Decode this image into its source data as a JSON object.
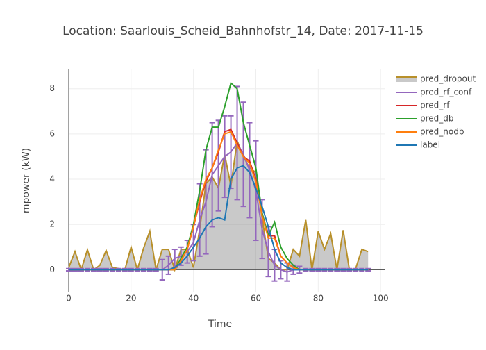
{
  "chart_data": {
    "type": "line",
    "title": "Location: Saarlouis_Scheid_Bahnhofstr_14, Date: 2017-11-15",
    "xlabel": "Time",
    "ylabel": "mpower (kW)",
    "xlim": [
      0,
      101.3
    ],
    "ylim": [
      -0.97,
      8.85
    ],
    "xticks": [
      0,
      20,
      40,
      60,
      80,
      100
    ],
    "yticks": [
      0,
      2,
      4,
      6,
      8
    ],
    "grid": true,
    "legend": "right",
    "x": [
      0,
      2,
      4,
      6,
      8,
      10,
      12,
      14,
      16,
      18,
      20,
      22,
      24,
      26,
      28,
      30,
      32,
      34,
      36,
      38,
      40,
      42,
      44,
      46,
      48,
      50,
      52,
      54,
      56,
      58,
      60,
      62,
      64,
      66,
      68,
      70,
      72,
      74,
      76,
      78,
      80,
      82,
      84,
      86,
      88,
      90,
      92,
      94,
      96
    ],
    "series": [
      {
        "name": "pred_dropout",
        "color": "#b8902a",
        "fill": "tozeroy",
        "fill_color": "rgba(120,120,120,0.4)",
        "values": [
          0.1,
          0.8,
          0.0,
          0.88,
          0.0,
          0.2,
          0.85,
          0.1,
          0.05,
          0.0,
          1.0,
          0.0,
          0.95,
          1.7,
          0.0,
          0.9,
          0.9,
          0.0,
          0.9,
          0.9,
          0.1,
          1.8,
          3.8,
          4.1,
          3.6,
          5.1,
          3.7,
          5.7,
          5.0,
          4.5,
          4.3,
          2.3,
          0.5,
          0.3,
          0.0,
          0.0,
          0.9,
          0.6,
          2.2,
          0.0,
          1.7,
          0.9,
          1.6,
          0.0,
          1.75,
          0.0,
          0.05,
          0.9,
          0.8
        ]
      },
      {
        "name": "pred_rf_conf",
        "color": "#9467bd",
        "values": [
          0,
          0,
          0,
          0,
          0,
          0,
          0,
          0,
          0,
          0,
          0,
          0,
          0,
          0,
          0,
          0.0,
          0.2,
          0.5,
          0.6,
          0.8,
          1.2,
          2.2,
          3.0,
          4.2,
          4.6,
          5.0,
          5.2,
          5.6,
          5.1,
          4.4,
          3.5,
          1.8,
          0.8,
          0.2,
          0.0,
          -0.1,
          0,
          0,
          0,
          0,
          0,
          0,
          0,
          0,
          0,
          0,
          0,
          0,
          0
        ],
        "error": [
          0.05,
          0.05,
          0.05,
          0.05,
          0.05,
          0.05,
          0.05,
          0.05,
          0.05,
          0.05,
          0.05,
          0.05,
          0.05,
          0.05,
          0.05,
          0.45,
          0.4,
          0.4,
          0.4,
          0.5,
          0.8,
          1.6,
          2.3,
          2.3,
          2.0,
          1.8,
          1.6,
          2.5,
          2.3,
          2.1,
          2.2,
          1.3,
          1.1,
          0.7,
          0.4,
          0.4,
          0.2,
          0.15,
          0.05,
          0.05,
          0.05,
          0.05,
          0.05,
          0.05,
          0.05,
          0.05,
          0.05,
          0.05,
          0.05
        ]
      },
      {
        "name": "pred_rf",
        "color": "#d62728",
        "values": [
          0,
          0,
          0,
          0,
          0,
          0,
          0,
          0,
          0,
          0,
          0,
          0,
          0,
          0,
          0,
          0,
          0,
          0,
          0.4,
          0.9,
          1.9,
          3.0,
          3.9,
          4.5,
          5.2,
          6.1,
          6.2,
          5.6,
          5.0,
          4.8,
          4.0,
          2.5,
          1.5,
          1.5,
          0.6,
          0.3,
          0.1,
          0,
          0,
          0,
          0,
          0,
          0,
          0,
          0,
          0,
          0,
          0,
          0
        ]
      },
      {
        "name": "pred_db",
        "color": "#2ca02c",
        "values": [
          0,
          0,
          0,
          0,
          0,
          0,
          0,
          0,
          0,
          0,
          0,
          0,
          0,
          0,
          0,
          0,
          0,
          0,
          0.5,
          1.0,
          2.0,
          3.5,
          5.3,
          6.3,
          6.3,
          7.2,
          8.25,
          8.0,
          6.5,
          5.5,
          4.5,
          2.5,
          1.5,
          2.1,
          1.0,
          0.5,
          0.2,
          0,
          0,
          0,
          0,
          0,
          0,
          0,
          0,
          0,
          0,
          0,
          0
        ]
      },
      {
        "name": "pred_nodb",
        "color": "#ff7f0e",
        "values": [
          0,
          0,
          0,
          0,
          0,
          0,
          0,
          0,
          0,
          0,
          0,
          0,
          0,
          0,
          0,
          0,
          0,
          0,
          0.4,
          0.9,
          1.9,
          3.1,
          4.0,
          4.5,
          5.3,
          6.0,
          6.1,
          5.5,
          5.0,
          4.7,
          3.9,
          2.4,
          1.4,
          1.4,
          0.6,
          0.3,
          0.1,
          0,
          0,
          0,
          0,
          0,
          0,
          0,
          0,
          0,
          0,
          0,
          0
        ]
      },
      {
        "name": "label",
        "color": "#1f77b4",
        "values": [
          0,
          0,
          0,
          0,
          0,
          0,
          0,
          0,
          0,
          0,
          0,
          0,
          0,
          0,
          0,
          0,
          0,
          0.1,
          0.3,
          0.6,
          1.0,
          1.4,
          1.9,
          2.2,
          2.3,
          2.2,
          4.0,
          4.5,
          4.6,
          4.3,
          3.6,
          2.8,
          1.9,
          0.9,
          0.3,
          0.1,
          0,
          0,
          0,
          0,
          0,
          0,
          0,
          0,
          0,
          0,
          0,
          0,
          0
        ]
      }
    ]
  }
}
